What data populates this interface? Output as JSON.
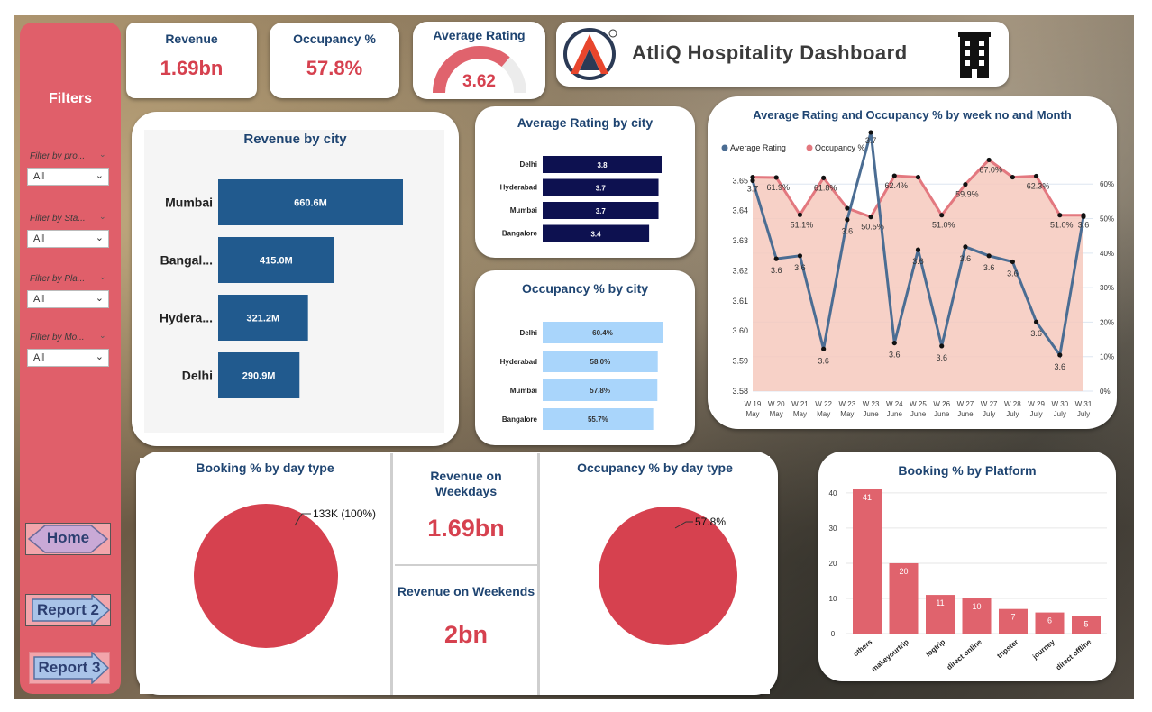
{
  "kpis": {
    "revenue": {
      "label": "Revenue",
      "value": "1.69bn"
    },
    "occupancy": {
      "label": "Occupancy %",
      "value": "57.8%"
    },
    "rating": {
      "label": "Average Rating",
      "value": "3.62",
      "fraction": 0.724
    }
  },
  "header": {
    "title": "AtliQ Hospitality Dashboard",
    "logo_icon": "atliq-logo",
    "building_icon": "building-icon"
  },
  "sidebar": {
    "title": "Filters",
    "filters": [
      {
        "label": "Filter by pro...",
        "value": "All"
      },
      {
        "label": "Filter by Sta...",
        "value": "All"
      },
      {
        "label": "Filter by Pla...",
        "value": "All"
      },
      {
        "label": "Filter by Mo...",
        "value": "All"
      }
    ],
    "nav": {
      "home": "Home",
      "report2": "Report 2",
      "report3": "Report 3"
    }
  },
  "center": {
    "weekdays_label": "Revenue on Weekdays",
    "weekdays_value": "1.69bn",
    "weekends_label": "Revenue on Weekends",
    "weekends_value": "2bn"
  },
  "colors": {
    "accent": "#d6414f",
    "navy": "#1e4471",
    "bar_blue": "#215a8e",
    "dark_navy": "#0d1150",
    "light_blue": "#a9d5fb",
    "pink_bar": "#e0636d",
    "sidebar": "#e05f6a",
    "rating_line": "#4b6d93",
    "occ_line": "#e3787f"
  },
  "chart_data": [
    {
      "id": "revenue_by_city",
      "type": "bar",
      "title": "Revenue by city",
      "categories": [
        "Mumbai",
        "Bangal...",
        "Hydera...",
        "Delhi"
      ],
      "values": [
        660.6,
        415.0,
        321.2,
        290.9
      ],
      "labels": [
        "660.6M",
        "415.0M",
        "321.2M",
        "290.9M"
      ],
      "orientation": "horizontal"
    },
    {
      "id": "rating_by_city",
      "type": "bar",
      "title": "Average Rating by city",
      "categories": [
        "Delhi",
        "Hyderabad",
        "Mumbai",
        "Bangalore"
      ],
      "values": [
        3.8,
        3.7,
        3.7,
        3.4
      ],
      "labels": [
        "3.8",
        "3.7",
        "3.7",
        "3.4"
      ],
      "orientation": "horizontal"
    },
    {
      "id": "occupancy_by_city",
      "type": "bar",
      "title": "Occupancy % by city",
      "categories": [
        "Delhi",
        "Hyderabad",
        "Mumbai",
        "Bangalore"
      ],
      "values": [
        60.4,
        58.0,
        57.8,
        55.7
      ],
      "labels": [
        "60.4%",
        "58.0%",
        "57.8%",
        "55.7%"
      ],
      "orientation": "horizontal"
    },
    {
      "id": "rating_occupancy_by_week",
      "type": "line",
      "title": "Average Rating and Occupancy % by week no and Month",
      "x": [
        "W 19|May",
        "W 20|May",
        "W 21|May",
        "W 22|May",
        "W 23|May",
        "W 23|June",
        "W 24|June",
        "W 25|June",
        "W 26|June",
        "W 27|June",
        "W 27|July",
        "W 28|July",
        "W 29|July",
        "W 30|July",
        "W 31|July"
      ],
      "series": [
        {
          "name": "Average Rating",
          "axis": "left",
          "values": [
            3.65,
            3.624,
            3.625,
            3.594,
            3.637,
            3.666,
            3.596,
            3.627,
            3.595,
            3.628,
            3.625,
            3.623,
            3.603,
            3.592,
            3.638
          ],
          "labels": [
            "3.7",
            "3.6",
            "3.6",
            "3.6",
            "3.6",
            "3.7",
            "3.6",
            "3.6",
            "3.6",
            "3.6",
            "3.6",
            "3.6",
            "3.6",
            "3.6",
            "3.6"
          ]
        },
        {
          "name": "Occupancy %",
          "axis": "right",
          "values": [
            62,
            61.9,
            51.1,
            61.8,
            53,
            50.5,
            62.4,
            62,
            51.0,
            59.9,
            67.0,
            62,
            62.3,
            51.0,
            51
          ],
          "labels": [
            "",
            "61.9%",
            "51.1%",
            "61.8%",
            "",
            "50.5%",
            "62.4%",
            "",
            "51.0%",
            "59.9%",
            "67.0%",
            "",
            "62.3%",
            "51.0%",
            ""
          ]
        }
      ],
      "y_left_ticks": [
        "3.65",
        "3.64",
        "3.63",
        "3.62",
        "3.61",
        "3.60",
        "3.59",
        "3.58"
      ],
      "ylim_left": [
        3.58,
        3.654
      ],
      "y_right_ticks": [
        "60%",
        "50%",
        "40%",
        "30%",
        "20%",
        "10%",
        "0%"
      ],
      "ylim_right": [
        0,
        64.5
      ],
      "legend": "top-left"
    },
    {
      "id": "booking_by_day_type",
      "type": "pie",
      "title": "Booking % by day type",
      "slices": [
        {
          "label": "133K (100%)",
          "value": 100
        }
      ]
    },
    {
      "id": "occupancy_by_day_type",
      "type": "pie",
      "title": "Occupancy % by day type",
      "slices": [
        {
          "label": "57.8%",
          "value": 100
        }
      ]
    },
    {
      "id": "booking_by_platform",
      "type": "bar",
      "title": "Booking % by Platform",
      "categories": [
        "others",
        "makeyourtrip",
        "logtrip",
        "direct online",
        "tripster",
        "journey",
        "direct offline"
      ],
      "values": [
        41,
        20,
        11,
        10,
        7,
        6,
        5
      ],
      "y_ticks": [
        "40",
        "30",
        "20",
        "10",
        "0"
      ],
      "ylim": [
        0,
        41
      ]
    }
  ]
}
